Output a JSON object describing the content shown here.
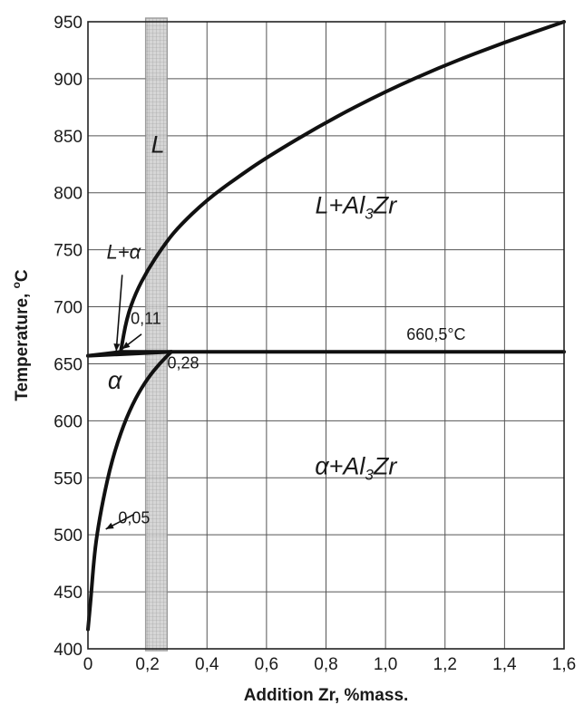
{
  "chart_data": {
    "type": "line",
    "xlabel": "Addition Zr, %mass.",
    "ylabel_main": "Temperature, ",
    "ylabel_sup": "o",
    "ylabel_unit": "C",
    "xlim": [
      0,
      1.6
    ],
    "ylim": [
      400,
      950
    ],
    "grid": true,
    "x_ticks": [
      0,
      0.2,
      0.4,
      0.6,
      0.8,
      1.0,
      1.2,
      1.4,
      1.6
    ],
    "x_tick_labels": [
      "0",
      "0,2",
      "0,4",
      "0,6",
      "0,8",
      "1,0",
      "1,2",
      "1,4",
      "1,6"
    ],
    "y_ticks": [
      400,
      450,
      500,
      550,
      600,
      650,
      700,
      750,
      800,
      850,
      900,
      950
    ],
    "y_tick_labels": [
      "400",
      "450",
      "500",
      "550",
      "600",
      "650",
      "700",
      "750",
      "800",
      "850",
      "900",
      "950"
    ],
    "series": [
      {
        "role": "liquidus-al3zr",
        "x": [
          0.11,
          0.13,
          0.16,
          0.2,
          0.25,
          0.3,
          0.4,
          0.5,
          0.6,
          0.8,
          1.0,
          1.2,
          1.4,
          1.6
        ],
        "y": [
          660.5,
          690,
          712,
          732,
          752,
          769,
          794,
          813,
          831,
          862,
          889,
          912,
          932,
          950
        ]
      },
      {
        "role": "liquidus-alpha",
        "x": [
          0,
          0.11
        ],
        "y": [
          657,
          660.5
        ]
      },
      {
        "role": "solidus",
        "x": [
          0,
          0.28
        ],
        "y": [
          657,
          660.5
        ]
      },
      {
        "role": "peritectic-isotherm",
        "x": [
          0.11,
          1.6
        ],
        "y": [
          660.5,
          660.5
        ]
      },
      {
        "role": "solvus",
        "x": [
          0,
          0.01,
          0.02,
          0.03,
          0.05,
          0.08,
          0.12,
          0.16,
          0.2,
          0.24,
          0.28
        ],
        "y": [
          417,
          445,
          478,
          500,
          530,
          565,
          597,
          620,
          637,
          650,
          660.5
        ]
      }
    ],
    "highlight_band": {
      "x": [
        0.2,
        0.26
      ],
      "y": [
        400,
        950
      ]
    },
    "regions": [
      {
        "label": "L",
        "x": 0.235,
        "y": 835
      },
      {
        "label": "L+Al",
        "sub": "3",
        "tail": "Zr",
        "x": 0.9,
        "y": 782
      },
      {
        "label": "α",
        "x": 0.09,
        "y": 628
      },
      {
        "label": "α+Al",
        "sub": "3",
        "tail": "Zr",
        "x": 0.9,
        "y": 553
      },
      {
        "label": "L+α",
        "x": 0.12,
        "y": 742
      }
    ],
    "annotations": [
      {
        "text": "0,11",
        "x": 0.195,
        "y": 685
      },
      {
        "text": "0,28",
        "x": 0.32,
        "y": 646
      },
      {
        "text": "0,05",
        "x": 0.155,
        "y": 510
      },
      {
        "text": "660,5°C",
        "x": 1.17,
        "y": 671
      }
    ]
  }
}
